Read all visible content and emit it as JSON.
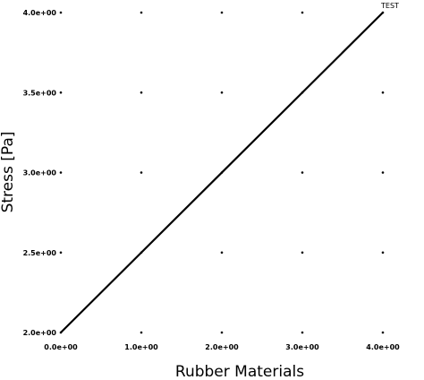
{
  "chart_data": {
    "type": "line",
    "xlabel": "Rubber Materials",
    "ylabel": "Stress [Pa]",
    "xlim": [
      0,
      4
    ],
    "ylim": [
      2,
      4
    ],
    "x_ticks": [
      0,
      1,
      2,
      3,
      4
    ],
    "y_ticks": [
      2.0,
      2.5,
      3.0,
      3.5,
      4.0
    ],
    "x_tick_labels": [
      "0.0e+00",
      "1.0e+00",
      "2.0e+00",
      "3.0e+00",
      "4.0e+00"
    ],
    "y_tick_labels": [
      "2.0e+00",
      "2.5e+00",
      "3.0e+00",
      "3.5e+00",
      "4.0e+00"
    ],
    "grid": "dots",
    "series": [
      {
        "name": "TEST",
        "x": [
          0,
          4
        ],
        "y": [
          2.0,
          4.0
        ],
        "color": "#000000"
      }
    ]
  }
}
